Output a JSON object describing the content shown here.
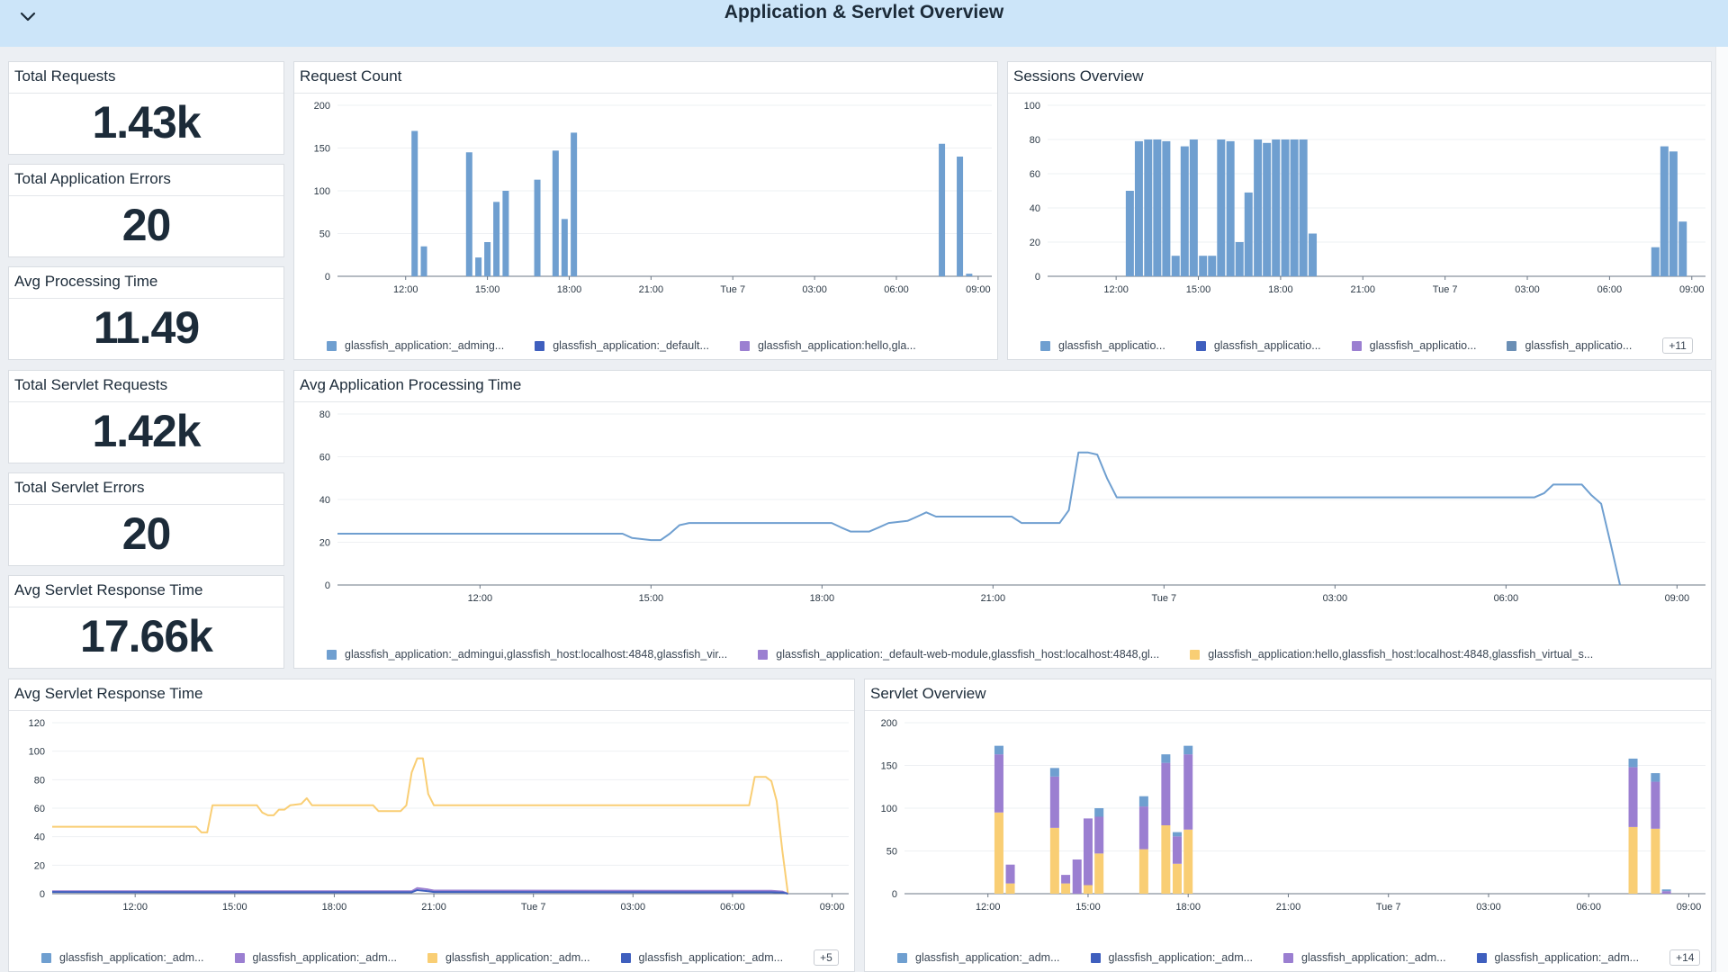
{
  "header": {
    "title": "Application & Servlet Overview",
    "collapse_icon": "chevron-down-icon",
    "background": "#cce5f9"
  },
  "colors": {
    "blue": "#6f9fd0",
    "dark_blue": "#3f5fbe",
    "purple": "#9b7fd1",
    "yellow": "#f9ce74",
    "steel": "#6b8fb5"
  },
  "stats": [
    {
      "title": "Total Requests",
      "value": "1.43k"
    },
    {
      "title": "Total Application Errors",
      "value": "20"
    },
    {
      "title": "Avg Processing Time",
      "value": "11.49"
    },
    {
      "title": "Total Servlet Requests",
      "value": "1.42k"
    },
    {
      "title": "Total Servlet Errors",
      "value": "20"
    },
    {
      "title": "Avg Servlet Response Time",
      "value": "17.66k"
    }
  ],
  "x_ticks": [
    "12:00",
    "15:00",
    "18:00",
    "21:00",
    "Tue 7",
    "03:00",
    "06:00",
    "09:00"
  ],
  "chart_data": [
    {
      "id": "request_count",
      "title": "Request Count",
      "type": "bar",
      "ylim": [
        0,
        200
      ],
      "y_ticks": [
        0,
        50,
        100,
        150,
        200
      ],
      "time_range": [
        9.5,
        33.5
      ],
      "series": [
        {
          "color": "#6f9fd0",
          "points": [
            [
              12.33,
              170
            ],
            [
              12.67,
              35
            ],
            [
              14.33,
              145
            ],
            [
              14.67,
              22
            ],
            [
              15.0,
              40
            ],
            [
              15.33,
              87
            ],
            [
              15.67,
              100
            ],
            [
              16.83,
              113
            ],
            [
              17.5,
              147
            ],
            [
              17.83,
              67
            ],
            [
              18.17,
              168
            ],
            [
              31.67,
              155
            ],
            [
              32.33,
              140
            ],
            [
              32.67,
              3
            ]
          ]
        }
      ],
      "legend": [
        {
          "label": "glassfish_application:_adming...",
          "color": "#6f9fd0"
        },
        {
          "label": "glassfish_application:_default...",
          "color": "#3f5fbe"
        },
        {
          "label": "glassfish_application:hello,gla...",
          "color": "#9b7fd1"
        }
      ]
    },
    {
      "id": "sessions_overview",
      "title": "Sessions Overview",
      "type": "bar",
      "ylim": [
        0,
        100
      ],
      "y_ticks": [
        0,
        20,
        40,
        60,
        80,
        100
      ],
      "time_range": [
        9.5,
        33.5
      ],
      "series": [
        {
          "color": "#6f9fd0",
          "points": [
            [
              12.5,
              50
            ],
            [
              12.83,
              79
            ],
            [
              13.17,
              80
            ],
            [
              13.5,
              80
            ],
            [
              13.83,
              79
            ],
            [
              14.17,
              12
            ],
            [
              14.5,
              76
            ],
            [
              14.83,
              80
            ],
            [
              15.17,
              12
            ],
            [
              15.5,
              12
            ],
            [
              15.83,
              80
            ],
            [
              16.17,
              79
            ],
            [
              16.5,
              20
            ],
            [
              16.83,
              49
            ],
            [
              17.17,
              80
            ],
            [
              17.5,
              78
            ],
            [
              17.83,
              80
            ],
            [
              18.17,
              80
            ],
            [
              18.5,
              80
            ],
            [
              18.83,
              80
            ],
            [
              19.17,
              25
            ],
            [
              31.67,
              17
            ],
            [
              32.0,
              76
            ],
            [
              32.33,
              73
            ],
            [
              32.67,
              32
            ]
          ]
        }
      ],
      "legend": [
        {
          "label": "glassfish_applicatio...",
          "color": "#6f9fd0"
        },
        {
          "label": "glassfish_applicatio...",
          "color": "#3f5fbe"
        },
        {
          "label": "glassfish_applicatio...",
          "color": "#9b7fd1"
        },
        {
          "label": "glassfish_applicatio...",
          "color": "#6b8fb5"
        }
      ],
      "more": "+11"
    },
    {
      "id": "avg_app_processing_time",
      "title": "Avg Application Processing Time",
      "type": "line",
      "ylim": [
        0,
        80
      ],
      "y_ticks": [
        0,
        20,
        40,
        60,
        80
      ],
      "time_range": [
        9.5,
        33.5
      ],
      "series": [
        {
          "color": "#6f9fd0",
          "points": [
            [
              9.5,
              24
            ],
            [
              10.5,
              24
            ],
            [
              14.5,
              24
            ],
            [
              14.67,
              22
            ],
            [
              15.0,
              21
            ],
            [
              15.17,
              21
            ],
            [
              15.33,
              24
            ],
            [
              15.5,
              28
            ],
            [
              15.67,
              29
            ],
            [
              18.17,
              29
            ],
            [
              18.33,
              27
            ],
            [
              18.5,
              25
            ],
            [
              18.83,
              25
            ],
            [
              19.0,
              27
            ],
            [
              19.17,
              29
            ],
            [
              19.5,
              30
            ],
            [
              19.67,
              32
            ],
            [
              19.83,
              34
            ],
            [
              20.0,
              32
            ],
            [
              21.33,
              32
            ],
            [
              21.5,
              29
            ],
            [
              22.17,
              29
            ],
            [
              22.33,
              35
            ],
            [
              22.5,
              62
            ],
            [
              22.67,
              62
            ],
            [
              22.83,
              61
            ],
            [
              23.0,
              50
            ],
            [
              23.17,
              41
            ],
            [
              30.5,
              41
            ],
            [
              30.67,
              43
            ],
            [
              30.83,
              47
            ],
            [
              31.33,
              47
            ],
            [
              31.5,
              42
            ],
            [
              31.67,
              38
            ],
            [
              31.83,
              20
            ],
            [
              32.0,
              0
            ]
          ]
        }
      ],
      "legend": [
        {
          "label": "glassfish_application:_admingui,glassfish_host:localhost:4848,glassfish_vir...",
          "color": "#6f9fd0"
        },
        {
          "label": "glassfish_application:_default-web-module,glassfish_host:localhost:4848,gl...",
          "color": "#9b7fd1"
        },
        {
          "label": "glassfish_application:hello,glassfish_host:localhost:4848,glassfish_virtual_s...",
          "color": "#f9ce74"
        }
      ]
    },
    {
      "id": "avg_servlet_response_time",
      "title": "Avg Servlet Response Time",
      "type": "line",
      "ylim": [
        0,
        120
      ],
      "y_ticks": [
        0,
        20,
        40,
        60,
        80,
        100,
        120
      ],
      "time_range": [
        9.5,
        33.5
      ],
      "series": [
        {
          "color": "#f9ce74",
          "points": [
            [
              9.5,
              47
            ],
            [
              13.83,
              47
            ],
            [
              14.0,
              43
            ],
            [
              14.17,
              43
            ],
            [
              14.33,
              62
            ],
            [
              15.67,
              62
            ],
            [
              15.83,
              57
            ],
            [
              16.0,
              55
            ],
            [
              16.17,
              55
            ],
            [
              16.33,
              59
            ],
            [
              16.5,
              59
            ],
            [
              16.67,
              62
            ],
            [
              17.0,
              63
            ],
            [
              17.17,
              67
            ],
            [
              17.33,
              62
            ],
            [
              19.17,
              62
            ],
            [
              19.33,
              58
            ],
            [
              20.0,
              58
            ],
            [
              20.17,
              62
            ],
            [
              20.33,
              85
            ],
            [
              20.5,
              95
            ],
            [
              20.67,
              95
            ],
            [
              20.83,
              70
            ],
            [
              21.0,
              62
            ],
            [
              30.5,
              62
            ],
            [
              30.67,
              82
            ],
            [
              31.0,
              82
            ],
            [
              31.17,
              79
            ],
            [
              31.33,
              65
            ],
            [
              31.5,
              30
            ],
            [
              31.67,
              0
            ]
          ]
        },
        {
          "color": "#9b7fd1",
          "points": [
            [
              9.5,
              1.8
            ],
            [
              14.0,
              1.8
            ],
            [
              18.0,
              1.8
            ],
            [
              20.33,
              1.8
            ],
            [
              20.5,
              4
            ],
            [
              20.83,
              3
            ],
            [
              21.0,
              2.2
            ],
            [
              31.17,
              2
            ],
            [
              31.5,
              1.5
            ],
            [
              31.67,
              0
            ]
          ]
        },
        {
          "color": "#3f5fbe",
          "points": [
            [
              9.5,
              1.2
            ],
            [
              14.0,
              1
            ],
            [
              20.33,
              1
            ],
            [
              20.5,
              2.5
            ],
            [
              20.83,
              1.8
            ],
            [
              21.0,
              1.2
            ],
            [
              31.17,
              1
            ],
            [
              31.5,
              0.8
            ],
            [
              31.67,
              0
            ]
          ]
        }
      ],
      "legend": [
        {
          "label": "glassfish_application:_adm...",
          "color": "#6f9fd0"
        },
        {
          "label": "glassfish_application:_adm...",
          "color": "#9b7fd1"
        },
        {
          "label": "glassfish_application:_adm...",
          "color": "#f9ce74"
        },
        {
          "label": "glassfish_application:_adm...",
          "color": "#3f5fbe"
        }
      ],
      "more": "+5"
    },
    {
      "id": "servlet_overview",
      "title": "Servlet Overview",
      "type": "bar",
      "stacked": true,
      "ylim": [
        0,
        200
      ],
      "y_ticks": [
        0,
        50,
        100,
        150,
        200
      ],
      "time_range": [
        9.5,
        33.5
      ],
      "stack_colors": [
        "#f9ce74",
        "#9b7fd1",
        "#6f9fd0"
      ],
      "bars": [
        [
          12.33,
          [
            95,
            68,
            10
          ]
        ],
        [
          12.67,
          [
            12,
            22,
            0
          ]
        ],
        [
          14.0,
          [
            77,
            60,
            10
          ]
        ],
        [
          14.33,
          [
            12,
            10,
            0
          ]
        ],
        [
          14.67,
          [
            0,
            40,
            0
          ]
        ],
        [
          15.0,
          [
            10,
            78,
            0
          ]
        ],
        [
          15.33,
          [
            47,
            43,
            10
          ]
        ],
        [
          16.67,
          [
            52,
            50,
            12
          ]
        ],
        [
          17.33,
          [
            80,
            73,
            10
          ]
        ],
        [
          17.67,
          [
            35,
            32,
            5
          ]
        ],
        [
          18.0,
          [
            75,
            88,
            10
          ]
        ],
        [
          31.33,
          [
            78,
            70,
            10
          ]
        ],
        [
          32.0,
          [
            76,
            55,
            10
          ]
        ],
        [
          32.33,
          [
            0,
            3,
            2
          ]
        ]
      ],
      "legend": [
        {
          "label": "glassfish_application:_adm...",
          "color": "#6f9fd0"
        },
        {
          "label": "glassfish_application:_adm...",
          "color": "#3f5fbe"
        },
        {
          "label": "glassfish_application:_adm...",
          "color": "#9b7fd1"
        },
        {
          "label": "glassfish_application:_adm...",
          "color": "#3f5fbe"
        }
      ],
      "more": "+14"
    }
  ]
}
